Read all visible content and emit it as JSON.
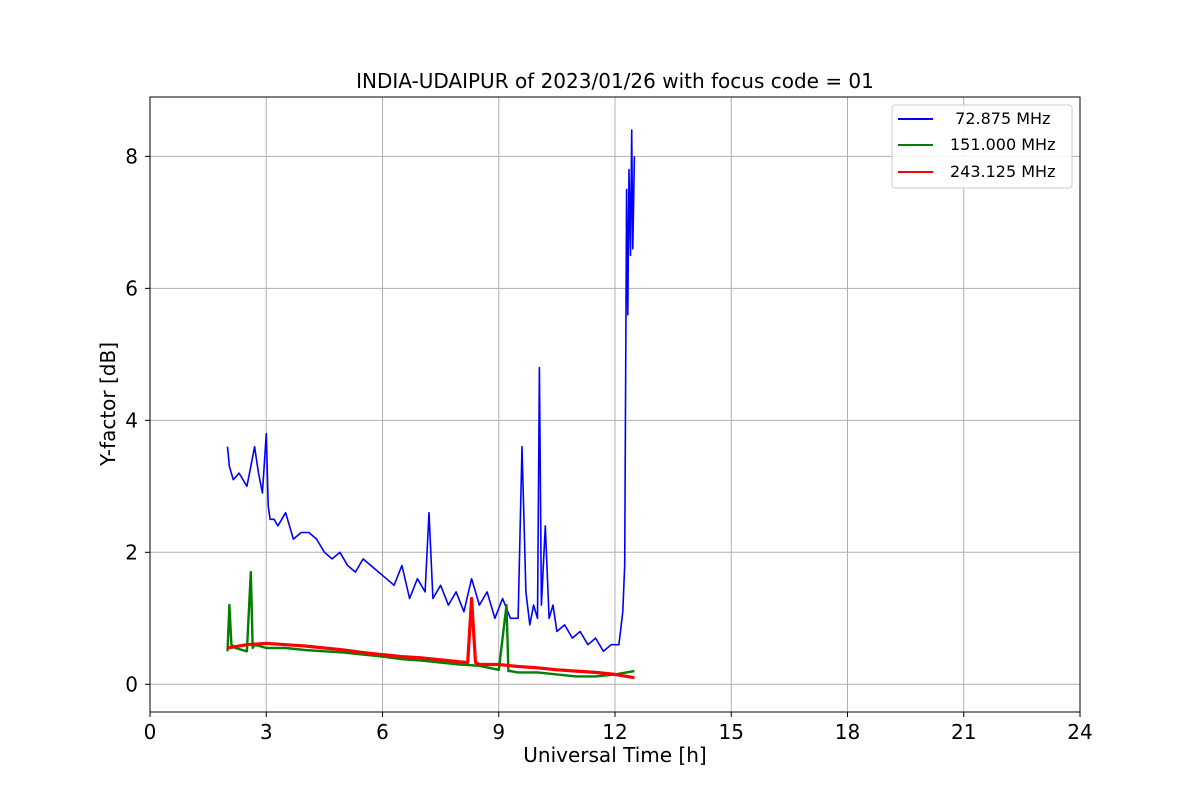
{
  "chart_data": {
    "type": "line",
    "title": "INDIA-UDAIPUR of 2023/01/26 with focus code = 01",
    "xlabel": "Universal Time [h]",
    "ylabel": "Y-factor [dB]",
    "xlim": [
      0,
      24
    ],
    "ylim": [
      -0.42,
      8.9
    ],
    "xticks": [
      0,
      3,
      6,
      9,
      12,
      15,
      18,
      21,
      24
    ],
    "yticks": [
      0,
      2,
      4,
      6,
      8
    ],
    "grid": true,
    "legend_position": "top-right",
    "series": [
      {
        "name": "  72.875 MHz",
        "color": "#0000ff",
        "x": [
          2.0,
          2.05,
          2.15,
          2.3,
          2.5,
          2.6,
          2.7,
          2.8,
          2.9,
          3.0,
          3.05,
          3.1,
          3.2,
          3.3,
          3.5,
          3.7,
          3.9,
          4.1,
          4.3,
          4.5,
          4.7,
          4.9,
          5.1,
          5.3,
          5.5,
          5.7,
          5.9,
          6.1,
          6.3,
          6.5,
          6.7,
          6.9,
          7.1,
          7.2,
          7.3,
          7.5,
          7.7,
          7.9,
          8.1,
          8.3,
          8.5,
          8.7,
          8.9,
          9.1,
          9.3,
          9.5,
          9.6,
          9.7,
          9.8,
          9.9,
          10.0,
          10.05,
          10.1,
          10.2,
          10.3,
          10.4,
          10.5,
          10.7,
          10.9,
          11.1,
          11.3,
          11.5,
          11.7,
          11.9,
          12.1,
          12.2,
          12.25,
          12.3,
          12.33,
          12.36,
          12.4,
          12.43,
          12.46,
          12.5
        ],
        "y": [
          3.6,
          3.3,
          3.1,
          3.2,
          3.0,
          3.3,
          3.6,
          3.2,
          2.9,
          3.8,
          2.7,
          2.5,
          2.5,
          2.4,
          2.6,
          2.2,
          2.3,
          2.3,
          2.2,
          2.0,
          1.9,
          2.0,
          1.8,
          1.7,
          1.9,
          1.8,
          1.7,
          1.6,
          1.5,
          1.8,
          1.3,
          1.6,
          1.4,
          2.6,
          1.3,
          1.5,
          1.2,
          1.4,
          1.1,
          1.6,
          1.2,
          1.4,
          1.0,
          1.3,
          1.0,
          1.0,
          3.6,
          1.4,
          0.9,
          1.2,
          1.0,
          4.8,
          1.2,
          2.4,
          1.0,
          1.2,
          0.8,
          0.9,
          0.7,
          0.8,
          0.6,
          0.7,
          0.5,
          0.6,
          0.6,
          1.1,
          1.8,
          7.5,
          5.6,
          7.8,
          6.5,
          8.4,
          6.6,
          8.0
        ]
      },
      {
        "name": "151.000 MHz",
        "color": "#008000",
        "x": [
          2.0,
          2.05,
          2.1,
          2.2,
          2.5,
          2.6,
          2.65,
          2.7,
          3.0,
          3.5,
          4.0,
          4.5,
          5.0,
          5.5,
          6.0,
          6.5,
          7.0,
          7.5,
          8.0,
          8.5,
          9.0,
          9.2,
          9.25,
          9.3,
          9.5,
          10.0,
          10.5,
          11.0,
          11.5,
          12.0,
          12.5
        ],
        "y": [
          0.5,
          1.2,
          0.6,
          0.55,
          0.5,
          1.7,
          0.55,
          0.6,
          0.55,
          0.55,
          0.52,
          0.5,
          0.48,
          0.45,
          0.42,
          0.38,
          0.36,
          0.33,
          0.3,
          0.28,
          0.22,
          1.2,
          0.2,
          0.2,
          0.18,
          0.18,
          0.15,
          0.12,
          0.12,
          0.15,
          0.2
        ]
      },
      {
        "name": "243.125 MHz",
        "color": "#ff0000",
        "x": [
          2.0,
          2.5,
          3.0,
          3.5,
          4.0,
          4.5,
          5.0,
          5.5,
          6.0,
          6.5,
          7.0,
          7.5,
          8.0,
          8.2,
          8.3,
          8.4,
          8.5,
          9.0,
          9.5,
          10.0,
          10.5,
          11.0,
          11.5,
          12.0,
          12.5
        ],
        "y": [
          0.55,
          0.6,
          0.62,
          0.6,
          0.58,
          0.55,
          0.52,
          0.48,
          0.45,
          0.42,
          0.4,
          0.37,
          0.34,
          0.33,
          1.3,
          0.33,
          0.3,
          0.3,
          0.27,
          0.25,
          0.22,
          0.2,
          0.18,
          0.15,
          0.1
        ]
      }
    ]
  }
}
